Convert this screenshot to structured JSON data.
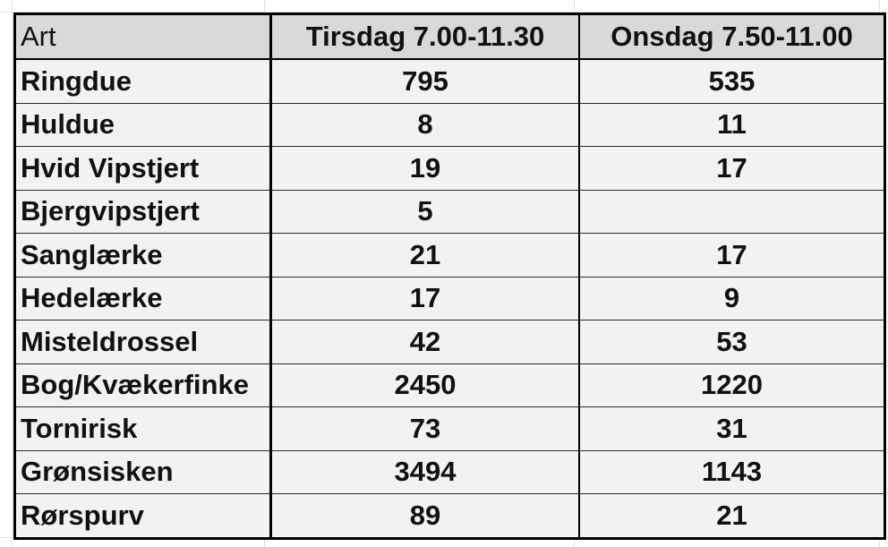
{
  "table": {
    "headers": [
      "Art",
      "Tirsdag 7.00-11.30",
      "Onsdag 7.50-11.00"
    ],
    "rows": [
      {
        "art": "Ringdue",
        "tirsdag": "795",
        "onsdag": "535"
      },
      {
        "art": "Huldue",
        "tirsdag": "8",
        "onsdag": "11"
      },
      {
        "art": "Hvid Vipstjert",
        "tirsdag": "19",
        "onsdag": "17"
      },
      {
        "art": "Bjergvipstjert",
        "tirsdag": "5",
        "onsdag": ""
      },
      {
        "art": "Sanglærke",
        "tirsdag": "21",
        "onsdag": "17"
      },
      {
        "art": "Hedelærke",
        "tirsdag": "17",
        "onsdag": "9"
      },
      {
        "art": "Misteldrossel",
        "tirsdag": "42",
        "onsdag": "53"
      },
      {
        "art": "Bog/Kvækerfinke",
        "tirsdag": "2450",
        "onsdag": "1220"
      },
      {
        "art": "Tornirisk",
        "tirsdag": "73",
        "onsdag": "31"
      },
      {
        "art": "Grønsisken",
        "tirsdag": "3494",
        "onsdag": "1143"
      },
      {
        "art": "Rørspurv",
        "tirsdag": "89",
        "onsdag": "21"
      }
    ]
  },
  "colors": {
    "header_fill": "#d9d9d9",
    "cell_fill": "#f2f2f2",
    "border": "#000000"
  }
}
